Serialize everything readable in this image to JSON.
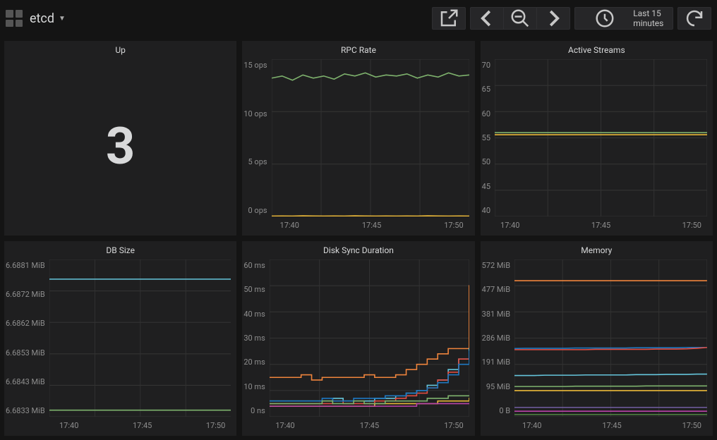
{
  "header": {
    "title": "etcd",
    "timerange_label": "Last 15 minutes"
  },
  "xaxis": {
    "labels": [
      "17:40",
      "17:45",
      "17:50"
    ]
  },
  "panels": {
    "up": {
      "title": "Up",
      "value": "3"
    },
    "rpc": {
      "title": "RPC Rate",
      "type": "line",
      "ylim": [
        0,
        15
      ],
      "yticks": [
        "15 ops",
        "10 ops",
        "5 ops",
        "0 ops"
      ],
      "grid_color": "#333333",
      "series": [
        {
          "color": "#7eb26d",
          "values": [
            13.2,
            13.4,
            13.0,
            13.5,
            13.2,
            13.4,
            13.1,
            13.6,
            13.4,
            13.7,
            13.3,
            13.5,
            13.4,
            13.6,
            13.2,
            13.5,
            13.3,
            13.7,
            13.4,
            13.5
          ]
        },
        {
          "color": "#eab839",
          "values": [
            0.04,
            0.05,
            0.04,
            0.06,
            0.05,
            0.04,
            0.05,
            0.04,
            0.06,
            0.05,
            0.04,
            0.05,
            0.04,
            0.05,
            0.04,
            0.06,
            0.05,
            0.04,
            0.05,
            0.04
          ]
        }
      ]
    },
    "streams": {
      "title": "Active Streams",
      "type": "line",
      "ylim": [
        40,
        70
      ],
      "yticks": [
        "70",
        "65",
        "60",
        "55",
        "50",
        "45",
        "40"
      ],
      "grid_color": "#333333",
      "series": [
        {
          "color": "#7eb26d",
          "values": [
            56,
            56,
            56,
            56,
            56,
            56,
            56,
            56,
            56,
            56,
            56,
            56,
            56,
            56,
            56,
            56,
            56,
            56,
            56,
            56
          ]
        },
        {
          "color": "#eab839",
          "values": [
            55.6,
            55.6,
            55.6,
            55.6,
            55.6,
            55.6,
            55.6,
            55.6,
            55.6,
            55.6,
            55.6,
            55.6,
            55.6,
            55.6,
            55.6,
            55.6,
            55.6,
            55.6,
            55.6,
            55.6
          ]
        }
      ]
    },
    "dbsize": {
      "title": "DB Size",
      "type": "line",
      "ylim": [
        6.6833,
        6.6881
      ],
      "yticks": [
        "6.6881 MiB",
        "6.6872 MiB",
        "6.6862 MiB",
        "6.6853 MiB",
        "6.6843 MiB",
        "6.6833 MiB"
      ],
      "grid_color": "#333333",
      "series": [
        {
          "color": "#65c5db",
          "values": [
            6.6875,
            6.6875,
            6.6875,
            6.6875,
            6.6875,
            6.6875,
            6.6875,
            6.6875,
            6.6875,
            6.6875,
            6.6875,
            6.6875,
            6.6875,
            6.6875,
            6.6875,
            6.6875,
            6.6875,
            6.6875,
            6.6875,
            6.6875
          ]
        },
        {
          "color": "#7eb26d",
          "values": [
            6.6835,
            6.6835,
            6.6835,
            6.6835,
            6.6835,
            6.6835,
            6.6835,
            6.6835,
            6.6835,
            6.6835,
            6.6835,
            6.6835,
            6.6835,
            6.6835,
            6.6835,
            6.6835,
            6.6835,
            6.6835,
            6.6835,
            6.6835
          ]
        }
      ]
    },
    "disksync": {
      "title": "Disk Sync Duration",
      "type": "step",
      "ylim": [
        0,
        60
      ],
      "yticks": [
        "60 ms",
        "50 ms",
        "40 ms",
        "30 ms",
        "20 ms",
        "10 ms",
        "0 ns"
      ],
      "grid_color": "#333333",
      "series": [
        {
          "color": "#ef843c",
          "values": [
            15,
            15,
            15,
            16,
            14,
            15,
            15,
            15,
            15,
            16,
            15,
            15,
            16,
            18,
            20,
            22,
            24,
            26,
            26,
            50
          ]
        },
        {
          "color": "#65c5db",
          "values": [
            6,
            6,
            6,
            6,
            6,
            6,
            7,
            6,
            6,
            6,
            7,
            7,
            8,
            9,
            10,
            12,
            14,
            18,
            22,
            26
          ]
        },
        {
          "color": "#e24d42",
          "values": [
            5,
            5,
            5,
            5,
            5,
            5,
            6,
            5,
            5,
            5,
            6,
            6,
            7,
            8,
            9,
            11,
            14,
            17,
            22,
            24
          ]
        },
        {
          "color": "#1f78c1",
          "values": [
            6,
            6,
            6,
            6,
            6,
            7,
            6,
            6,
            7,
            7,
            7,
            8,
            8,
            9,
            10,
            11,
            13,
            16,
            20,
            25
          ]
        },
        {
          "color": "#eab839",
          "values": [
            4,
            4,
            4,
            4,
            4,
            4,
            4,
            4,
            4,
            4,
            5,
            5,
            5,
            5,
            5,
            5,
            6,
            6,
            6,
            7
          ]
        },
        {
          "color": "#7eb26d",
          "values": [
            5,
            5,
            5,
            5,
            5,
            6,
            5,
            5,
            6,
            5,
            5,
            6,
            6,
            6,
            6,
            7,
            7,
            8,
            8,
            8
          ]
        },
        {
          "color": "#ba43a9",
          "values": [
            4,
            4,
            4,
            4,
            4,
            4,
            4,
            4,
            4,
            4,
            4,
            4,
            4,
            4,
            5,
            5,
            5,
            5,
            5,
            5
          ]
        }
      ]
    },
    "memory": {
      "title": "Memory",
      "type": "line",
      "ylim": [
        0,
        572
      ],
      "yticks": [
        "572 MiB",
        "477 MiB",
        "381 MiB",
        "286 MiB",
        "191 MiB",
        "95 MiB",
        "0 B"
      ],
      "grid_color": "#333333",
      "series": [
        {
          "color": "#ef843c",
          "values": [
            495,
            495,
            495,
            495,
            495,
            495,
            495,
            495,
            495,
            495,
            495,
            495,
            495,
            495,
            495,
            495,
            495,
            495,
            495,
            495
          ]
        },
        {
          "color": "#1f78c1",
          "values": [
            248,
            249,
            249,
            249,
            249,
            249,
            250,
            250,
            250,
            250,
            250,
            250,
            251,
            251,
            251,
            251,
            251,
            252,
            252,
            252
          ]
        },
        {
          "color": "#e24d42",
          "values": [
            244,
            244,
            244,
            244,
            244,
            244,
            244,
            244,
            245,
            245,
            245,
            245,
            245,
            245,
            246,
            246,
            246,
            247,
            249,
            252
          ]
        },
        {
          "color": "#65c5db",
          "values": [
            150,
            150,
            150,
            151,
            151,
            151,
            151,
            152,
            152,
            152,
            152,
            152,
            153,
            153,
            153,
            154,
            154,
            154,
            155,
            155
          ]
        },
        {
          "color": "#7eb26d",
          "values": [
            110,
            110,
            110,
            110,
            110,
            110,
            111,
            111,
            111,
            111,
            111,
            111,
            111,
            112,
            112,
            112,
            112,
            112,
            112,
            112
          ]
        },
        {
          "color": "#eab839",
          "values": [
            95,
            95,
            95,
            95,
            95,
            95,
            95,
            95,
            95,
            95,
            95,
            95,
            95,
            95,
            95,
            95,
            95,
            95,
            95,
            95
          ]
        },
        {
          "color": "#705da0",
          "values": [
            34,
            34,
            34,
            34,
            34,
            34,
            34,
            34,
            34,
            34,
            34,
            34,
            34,
            34,
            34,
            34,
            34,
            34,
            34,
            34
          ]
        },
        {
          "color": "#ba43a9",
          "values": [
            20,
            20,
            20,
            20,
            20,
            20,
            20,
            20,
            20,
            20,
            20,
            20,
            20,
            20,
            20,
            20,
            20,
            20,
            20,
            20
          ]
        },
        {
          "color": "#508642",
          "values": [
            8,
            8,
            8,
            8,
            8,
            8,
            8,
            8,
            8,
            8,
            8,
            8,
            8,
            8,
            8,
            8,
            8,
            8,
            8,
            8
          ]
        }
      ]
    }
  }
}
